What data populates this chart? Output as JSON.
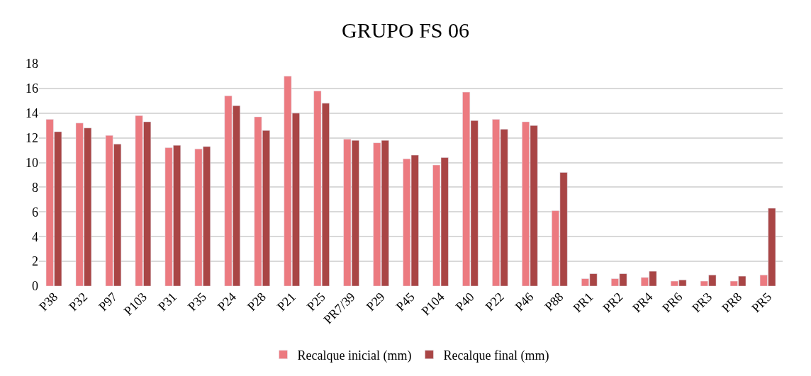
{
  "chart_data": {
    "type": "bar",
    "title": "GRUPO FS 06",
    "categories": [
      "P38",
      "P32",
      "P97",
      "P103",
      "P31",
      "P35",
      "P24",
      "P28",
      "P21",
      "P25",
      "PR7/39",
      "P29",
      "P45",
      "P104",
      "P40",
      "P22",
      "P46",
      "P88",
      "PR1",
      "PR2",
      "PR4",
      "PR6",
      "PR3",
      "PR8",
      "PR5"
    ],
    "series": [
      {
        "name": "Recalque inicial (mm)",
        "color": "#ec7a80",
        "values": [
          13.5,
          13.2,
          12.2,
          13.8,
          11.2,
          11.1,
          15.4,
          13.7,
          17.0,
          15.8,
          11.9,
          11.6,
          10.3,
          9.8,
          15.7,
          13.5,
          13.3,
          6.1,
          0.6,
          0.6,
          0.7,
          0.4,
          0.4,
          0.4,
          0.9
        ]
      },
      {
        "name": "Recalque final (mm)",
        "color": "#a94545",
        "values": [
          12.5,
          12.8,
          11.5,
          13.3,
          11.4,
          11.3,
          14.6,
          12.6,
          14.0,
          14.8,
          11.8,
          11.8,
          10.6,
          10.4,
          13.4,
          12.7,
          13.0,
          9.2,
          1.0,
          1.0,
          1.2,
          0.5,
          0.9,
          0.8,
          6.3
        ]
      }
    ],
    "ylim": [
      0,
      18
    ],
    "yticks": [
      0,
      2,
      4,
      6,
      8,
      10,
      12,
      14,
      16,
      18
    ],
    "grid": "y",
    "legend": "bottom"
  }
}
